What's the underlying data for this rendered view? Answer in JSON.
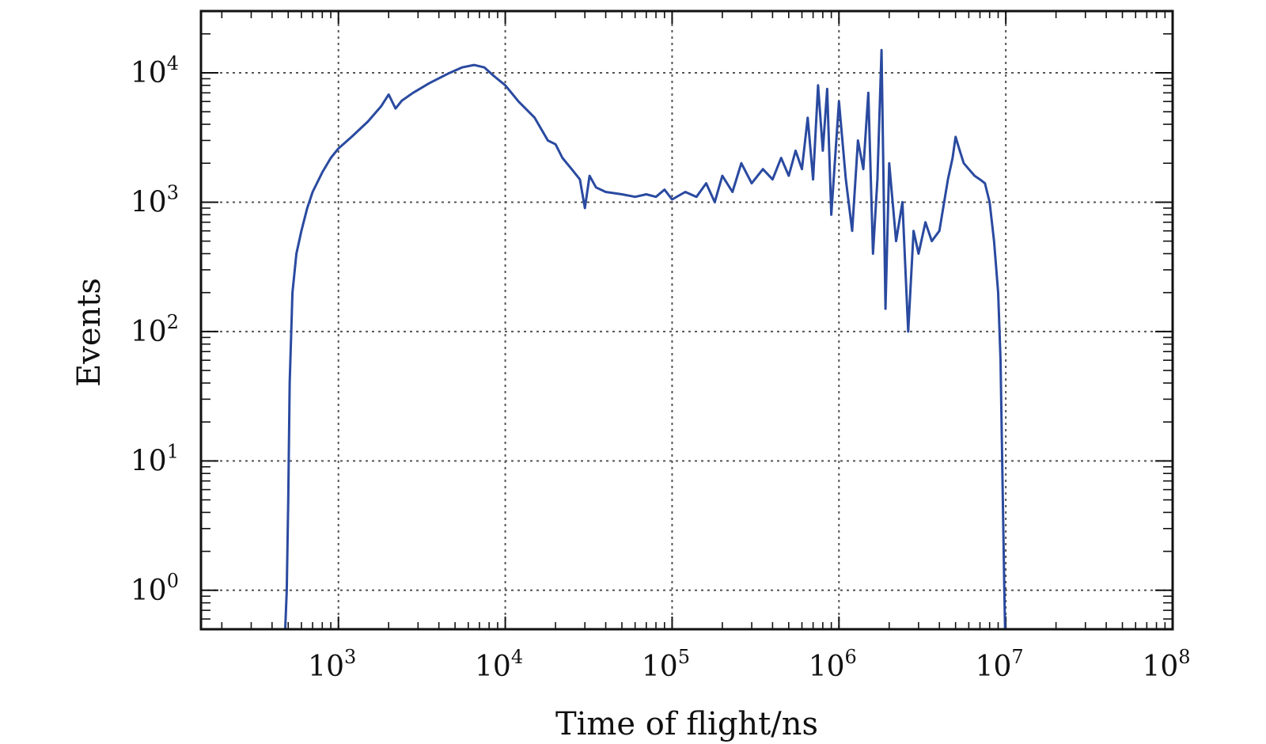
{
  "chart_data": {
    "type": "line",
    "title": "",
    "xlabel": "Time of flight/ns",
    "ylabel": "Events",
    "x_scale": "log",
    "y_scale": "log",
    "xlim": [
      150,
      100000000
    ],
    "ylim": [
      0.5,
      30000
    ],
    "grid": true,
    "legend": "none",
    "line_color": "#2a4aa0",
    "x_ticks": [
      {
        "value": 1000,
        "base": "10",
        "exp": "3"
      },
      {
        "value": 10000,
        "base": "10",
        "exp": "4"
      },
      {
        "value": 100000,
        "base": "10",
        "exp": "5"
      },
      {
        "value": 1000000,
        "base": "10",
        "exp": "6"
      },
      {
        "value": 10000000,
        "base": "10",
        "exp": "7"
      },
      {
        "value": 100000000,
        "base": "10",
        "exp": "8"
      }
    ],
    "y_ticks": [
      {
        "value": 1,
        "base": "10",
        "exp": "0"
      },
      {
        "value": 10,
        "base": "10",
        "exp": "1"
      },
      {
        "value": 100,
        "base": "10",
        "exp": "2"
      },
      {
        "value": 1000,
        "base": "10",
        "exp": "3"
      },
      {
        "value": 10000,
        "base": "10",
        "exp": "4"
      }
    ],
    "series": [
      {
        "x": [
          480,
          490,
          500,
          510,
          530,
          560,
          600,
          650,
          700,
          800,
          900,
          1000,
          1200,
          1500,
          1800,
          2000,
          2200,
          2400,
          2800,
          3500,
          4500,
          5500,
          6500,
          7500,
          8500,
          10000,
          12000,
          15000,
          18000,
          20000,
          22000,
          25000,
          28000,
          30000,
          32000,
          35000,
          40000,
          50000,
          60000,
          70000,
          80000,
          90000,
          100000,
          120000,
          140000,
          160000,
          180000,
          200000,
          230000,
          260000,
          300000,
          350000,
          400000,
          450000,
          500000,
          550000,
          600000,
          650000,
          700000,
          750000,
          800000,
          850000,
          900000,
          1000000,
          1100000,
          1200000,
          1300000,
          1400000,
          1500000,
          1600000,
          1700000,
          1800000,
          1900000,
          2000000,
          2200000,
          2400000,
          2600000,
          2800000,
          3000000,
          3300000,
          3600000,
          4000000,
          4500000,
          4800000,
          5000000,
          5300000,
          5600000,
          6000000,
          6500000,
          7000000,
          7500000,
          8000000,
          8500000,
          9000000,
          9300000,
          9600000,
          9800000,
          9900000
        ],
        "y": [
          0.5,
          1,
          5,
          40,
          200,
          400,
          600,
          900,
          1200,
          1700,
          2200,
          2600,
          3200,
          4200,
          5500,
          6800,
          5300,
          6100,
          7000,
          8300,
          9800,
          11000,
          11500,
          11000,
          9500,
          8000,
          6000,
          4500,
          3000,
          2800,
          2200,
          1800,
          1500,
          900,
          1600,
          1300,
          1200,
          1150,
          1100,
          1150,
          1100,
          1250,
          1050,
          1200,
          1100,
          1400,
          1000,
          1600,
          1200,
          2000,
          1400,
          1800,
          1500,
          2200,
          1600,
          2500,
          1800,
          4500,
          1500,
          8000,
          2500,
          7500,
          800,
          6000,
          1500,
          600,
          3000,
          1800,
          7000,
          400,
          1500,
          15000,
          150,
          2000,
          500,
          1000,
          100,
          600,
          400,
          700,
          500,
          600,
          1500,
          2200,
          3200,
          2500,
          2000,
          1800,
          1600,
          1500,
          1400,
          1000,
          500,
          200,
          60,
          5,
          1,
          0.5
        ]
      }
    ]
  }
}
